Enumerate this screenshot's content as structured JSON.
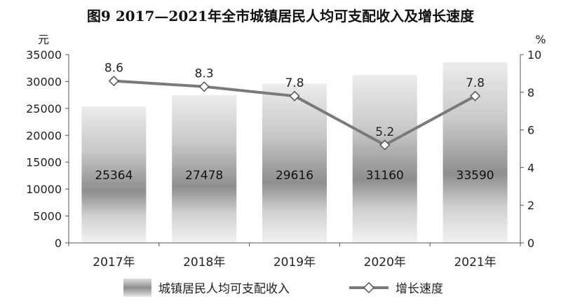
{
  "chart_data": {
    "type": "bar",
    "title": "图9  2017—2021年全市城镇居民人均可支配收入及增长速度",
    "categories": [
      "2017年",
      "2018年",
      "2019年",
      "2020年",
      "2021年"
    ],
    "series": [
      {
        "name": "城镇居民人均可支配收入",
        "type": "bar",
        "axis": "left",
        "values": [
          25364,
          27478,
          29616,
          31160,
          33590
        ]
      },
      {
        "name": "增长速度",
        "type": "line",
        "axis": "right",
        "marker": "diamond",
        "values": [
          8.6,
          8.3,
          7.8,
          5.2,
          7.8
        ]
      }
    ],
    "bar_labels": [
      "25364",
      "27478",
      "29616",
      "31160",
      "33590"
    ],
    "point_labels": [
      "8.6",
      "8.3",
      "7.8",
      "5.2",
      "7.8"
    ],
    "y_left": {
      "unit": "元",
      "ylim": [
        0,
        35000
      ],
      "ticks": [
        "0",
        "5000",
        "10000",
        "15000",
        "20000",
        "25000",
        "30000",
        "35000"
      ]
    },
    "y_right": {
      "unit": "%",
      "ylim": [
        0,
        10
      ],
      "ticks": [
        "0",
        "2",
        "4",
        "6",
        "8",
        "10"
      ]
    },
    "grid": false,
    "legend_position": "bottom",
    "colors": {
      "bar_light": "#eeeeee",
      "bar_dark": "#8c8c8c",
      "line": "#7a7a7a",
      "axis": "#555555"
    }
  }
}
